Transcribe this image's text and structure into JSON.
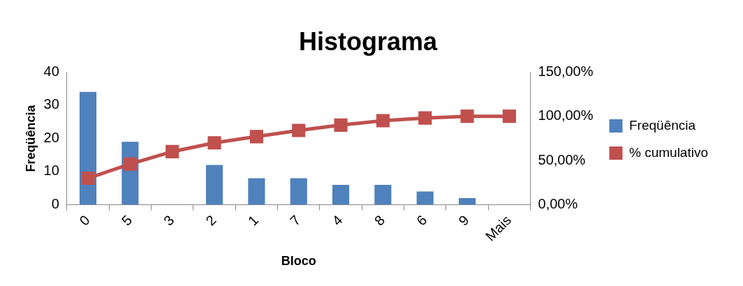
{
  "chart_data": {
    "type": "bar",
    "title": "Histograma",
    "xlabel": "Bloco",
    "ylabel": "Freqüência",
    "categories": [
      "0",
      "5",
      "3",
      "2",
      "1",
      "7",
      "4",
      "8",
      "6",
      "9",
      "Mais"
    ],
    "series": [
      {
        "name": "Freqüência",
        "color": "#4f81bd",
        "values": [
          34,
          19,
          null,
          12,
          8,
          8,
          6,
          6,
          4,
          2,
          0
        ]
      },
      {
        "name": "% cumulativo",
        "type": "line",
        "axis": "y2",
        "color": "#c0504d",
        "marker": "square",
        "values": [
          30,
          46,
          60,
          70,
          77,
          84,
          90,
          95,
          98,
          100,
          100
        ]
      }
    ],
    "ylim": [
      0,
      40
    ],
    "yticks": [
      0,
      10,
      20,
      30,
      40
    ],
    "y2lim": [
      0,
      150
    ],
    "y2ticks": [
      {
        "value": 0,
        "label": "0,00%"
      },
      {
        "value": 50,
        "label": "50,00%"
      },
      {
        "value": 100,
        "label": "100,00%"
      },
      {
        "value": 150,
        "label": "150,00%"
      }
    ],
    "grid": false,
    "legend": "right"
  }
}
